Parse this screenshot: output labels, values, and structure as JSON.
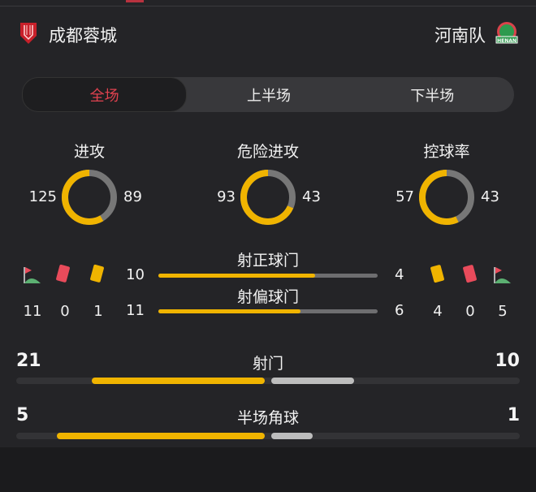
{
  "home": {
    "name": "成都蓉城",
    "crest": "chengdu-rongcheng-crest"
  },
  "away": {
    "name": "河南队",
    "crest": "henan-crest",
    "crest_text": "HENAN"
  },
  "tabs": [
    {
      "label": "全场",
      "active": true
    },
    {
      "label": "上半场",
      "active": false
    },
    {
      "label": "下半场",
      "active": false
    }
  ],
  "donuts": [
    {
      "label": "进攻",
      "home": 125,
      "away": 89
    },
    {
      "label": "危险进攻",
      "home": 93,
      "away": 43
    },
    {
      "label": "控球率",
      "home": 57,
      "away": 43
    }
  ],
  "cards": {
    "home": {
      "corners": 11,
      "red": 0,
      "yellow": 1
    },
    "away": {
      "yellow": 4,
      "red": 0,
      "corners": 5
    }
  },
  "shot_bars": [
    {
      "label": "射正球门",
      "home": 10,
      "away": 4
    },
    {
      "label": "射偏球门",
      "home": 11,
      "away": 6
    }
  ],
  "big_bars": [
    {
      "label": "射门",
      "home": 21,
      "away": 10
    },
    {
      "label": "半场角球",
      "home": 5,
      "away": 1
    }
  ],
  "colors": {
    "home": "#f0b400",
    "away": "#777777",
    "accent": "#e0424f",
    "red_card": "#e94b5b",
    "yellow_card": "#f0b400"
  }
}
